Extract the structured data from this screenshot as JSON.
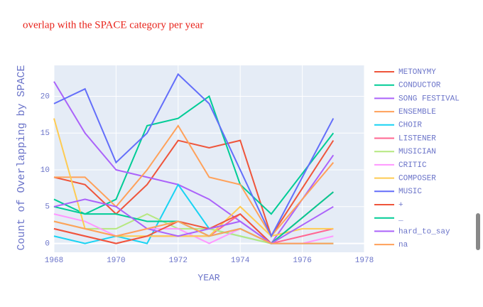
{
  "chart_data": {
    "type": "line",
    "title": "overlap with the SPACE category per year",
    "x_label": "YEAR",
    "y_label": "Count of Overlapping by SPACE",
    "x": [
      1968,
      1969,
      1970,
      1971,
      1972,
      1973,
      1974,
      1975,
      1976,
      1977
    ],
    "xlim": [
      1968,
      1978
    ],
    "xticks": [
      1968,
      1970,
      1972,
      1974,
      1976,
      1978
    ],
    "ylim": [
      -1.2,
      24.2
    ],
    "yticks": [
      0,
      5,
      10,
      15,
      20
    ],
    "grid": true,
    "series": [
      {
        "name": "METONYMY",
        "color": "#EF553B",
        "values": [
          9,
          8,
          4,
          8,
          14,
          13,
          14,
          1,
          7.5,
          14
        ]
      },
      {
        "name": "CONDUCTOR",
        "color": "#00cc96",
        "values": [
          6,
          4,
          6,
          16,
          17,
          20,
          8,
          4,
          9.5,
          15
        ]
      },
      {
        "name": "SONG FESTIVAL",
        "color": "#ab63fa",
        "values": [
          22,
          15,
          10,
          9,
          8,
          6,
          3,
          0,
          6,
          12
        ]
      },
      {
        "name": "ENSEMBLE",
        "color": "#FFA15A",
        "values": [
          9,
          9,
          5,
          10,
          16,
          9,
          8,
          1,
          6,
          11
        ]
      },
      {
        "name": "CHOIR",
        "color": "#19d3f3",
        "values": [
          1,
          0,
          1,
          0,
          8,
          2,
          1,
          0,
          0,
          0
        ]
      },
      {
        "name": "LISTENER",
        "color": "#FF6692",
        "values": [
          2,
          1,
          0,
          1,
          1,
          1,
          4,
          0,
          1,
          2
        ]
      },
      {
        "name": "MUSICIAN",
        "color": "#B6E880",
        "values": [
          3,
          2,
          2,
          4,
          2,
          2,
          1,
          0,
          0,
          0
        ]
      },
      {
        "name": "CRITIC",
        "color": "#FF97FF",
        "values": [
          4,
          3,
          1,
          2,
          2,
          0,
          2,
          0,
          0,
          1
        ]
      },
      {
        "name": "COMPOSER",
        "color": "#FECB52",
        "values": [
          17,
          2,
          1,
          1,
          1,
          1,
          5,
          1,
          2,
          2
        ]
      },
      {
        "name": "MUSIC",
        "color": "#636efa",
        "values": [
          19,
          21,
          11,
          15,
          23,
          19,
          10,
          1,
          9,
          17
        ]
      },
      {
        "name": "+",
        "color": "#EF553B",
        "values": [
          2,
          1,
          0,
          1,
          3,
          2,
          4,
          0,
          3.5,
          7
        ]
      },
      {
        "name": "_",
        "color": "#00cc96",
        "values": [
          5,
          4,
          4,
          3,
          3,
          1,
          2,
          0,
          3.5,
          7
        ]
      },
      {
        "name": "hard_to_say",
        "color": "#ab63fa",
        "values": [
          5,
          6,
          5,
          2,
          1,
          2,
          3,
          0,
          2.5,
          5
        ]
      },
      {
        "name": "na",
        "color": "#FFA15A",
        "values": [
          3,
          2,
          1,
          2,
          3,
          1,
          2,
          0,
          0,
          0
        ]
      }
    ]
  }
}
